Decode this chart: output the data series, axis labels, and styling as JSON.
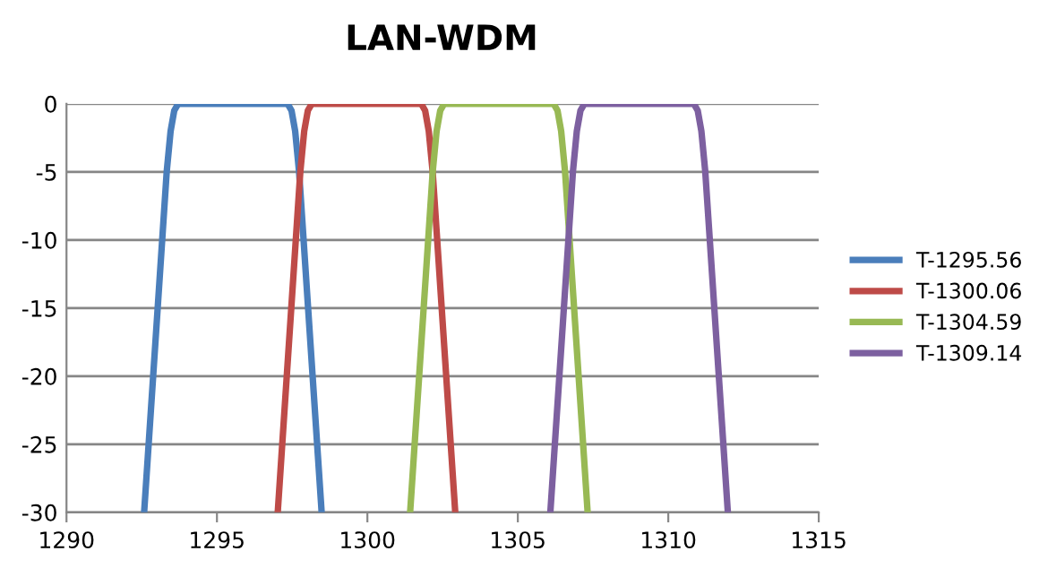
{
  "chart_data": {
    "type": "line",
    "title": "LAN-WDM",
    "xlim": [
      1290,
      1315
    ],
    "xticks": [
      1290,
      1295,
      1300,
      1305,
      1310,
      1315
    ],
    "ylim": [
      -30,
      0
    ],
    "yticks": [
      -30,
      -25,
      -20,
      -15,
      -10,
      -5,
      0
    ],
    "grid": "y",
    "legend": "right",
    "marker": "none",
    "line_style": "solid",
    "series": [
      {
        "name": "T-1295.56",
        "color": "#4a7ebb",
        "x": [
          1292.58,
          1292.88,
          1293.03,
          1293.18,
          1293.33,
          1293.46,
          1293.58,
          1293.71,
          1297.35,
          1297.48,
          1297.6,
          1297.73,
          1297.88,
          1298.03,
          1298.18,
          1298.48
        ],
        "values": [
          -30,
          -20,
          -15,
          -10,
          -5,
          -2,
          -0.5,
          0,
          0,
          -0.5,
          -2,
          -5,
          -10,
          -15,
          -20,
          -30
        ]
      },
      {
        "name": "T-1300.06",
        "color": "#be4b48",
        "x": [
          1297.02,
          1297.32,
          1297.47,
          1297.62,
          1297.77,
          1297.9,
          1298.02,
          1298.15,
          1301.79,
          1301.92,
          1302.04,
          1302.17,
          1302.32,
          1302.47,
          1302.62,
          1302.92
        ],
        "values": [
          -30,
          -20,
          -15,
          -10,
          -5,
          -2,
          -0.5,
          0,
          0,
          -0.5,
          -2,
          -5,
          -10,
          -15,
          -20,
          -30
        ]
      },
      {
        "name": "T-1304.59",
        "color": "#98b954",
        "x": [
          1301.42,
          1301.72,
          1301.87,
          1302.02,
          1302.17,
          1302.3,
          1302.42,
          1302.55,
          1306.19,
          1306.32,
          1306.44,
          1306.57,
          1306.72,
          1306.87,
          1307.02,
          1307.32
        ],
        "values": [
          -30,
          -20,
          -15,
          -10,
          -5,
          -2,
          -0.5,
          0,
          0,
          -0.5,
          -2,
          -5,
          -10,
          -15,
          -20,
          -30
        ]
      },
      {
        "name": "T-1309.14",
        "color": "#7d60a0",
        "x": [
          1306.08,
          1306.38,
          1306.53,
          1306.68,
          1306.83,
          1306.96,
          1307.08,
          1307.21,
          1310.85,
          1310.98,
          1311.1,
          1311.23,
          1311.38,
          1311.53,
          1311.68,
          1311.98
        ],
        "values": [
          -30,
          -20,
          -15,
          -10,
          -5,
          -2,
          -0.5,
          0,
          0,
          -0.5,
          -2,
          -5,
          -10,
          -15,
          -20,
          -30
        ]
      }
    ]
  }
}
